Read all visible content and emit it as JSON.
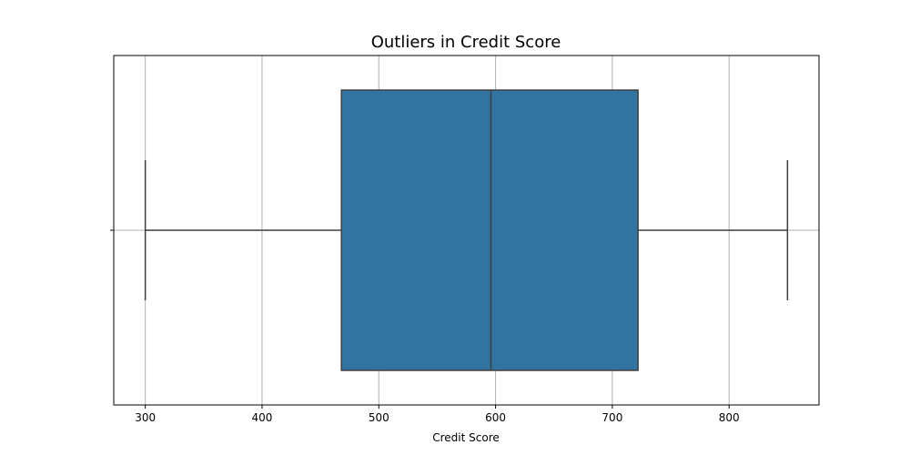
{
  "chart_data": {
    "type": "box",
    "title": "Outliers in Credit Score",
    "xlabel": "Credit Score",
    "ylabel": "",
    "xlim": [
      273,
      877
    ],
    "xticks": [
      300,
      400,
      500,
      600,
      700,
      800
    ],
    "grid": true,
    "orientation": "horizontal",
    "box": {
      "whisker_low": 300,
      "q1": 468,
      "median": 596,
      "q3": 722,
      "whisker_high": 850
    },
    "colors": {
      "box_fill": "#3274a1",
      "line": "#3f3f3f",
      "grid": "#b0b0b0",
      "axes": "#000000"
    }
  }
}
